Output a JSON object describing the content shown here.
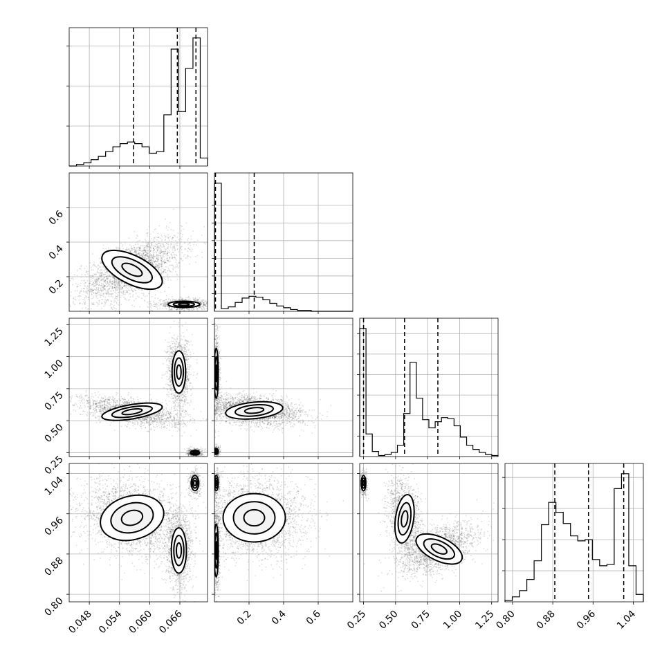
{
  "chart_data": {
    "type": "corner",
    "parameters": 4,
    "grid": true,
    "params": [
      {
        "range": [
          0.044,
          0.0715
        ],
        "ticks": [
          0.048,
          0.054,
          0.06,
          0.066
        ],
        "tick_labels": [
          "0.048",
          "0.054",
          "0.060",
          "0.066"
        ],
        "quantiles": [
          0.0568,
          0.0655,
          0.0692
        ],
        "hist": [
          0,
          1,
          2,
          4,
          6,
          9,
          12,
          14,
          15,
          14,
          12,
          8,
          9,
          32,
          73,
          34,
          61,
          80,
          5
        ]
      },
      {
        "range": [
          0.0,
          0.8
        ],
        "ticks": [
          0.2,
          0.4,
          0.6
        ],
        "tick_labels": [
          "0.2",
          "0.4",
          "0.6"
        ],
        "quantiles": [
          0.006,
          0.23
        ],
        "hist": [
          145,
          3,
          5,
          10,
          15,
          17,
          16,
          13,
          9,
          6,
          4,
          2,
          1,
          1,
          0,
          0,
          0,
          0,
          0,
          0
        ]
      },
      {
        "range": [
          0.22,
          1.3
        ],
        "ticks": [
          0.25,
          0.5,
          0.75,
          1.0,
          1.25
        ],
        "tick_labels": [
          "0.25",
          "0.50",
          "0.75",
          "1.00",
          "1.25"
        ],
        "quantiles": [
          0.25,
          0.57,
          0.83
        ],
        "hist": [
          125,
          22,
          5,
          1,
          2,
          4,
          11,
          42,
          92,
          57,
          36,
          28,
          34,
          38,
          37,
          30,
          19,
          11,
          7,
          4,
          2,
          1
        ]
      },
      {
        "range": [
          0.785,
          1.06
        ],
        "ticks": [
          0.8,
          0.88,
          0.96,
          1.04
        ],
        "tick_labels": [
          "0.80",
          "0.88",
          "0.96",
          "1.04"
        ],
        "quantiles": [
          0.884,
          0.951,
          1.021
        ],
        "hist": [
          1,
          4,
          9,
          18,
          33,
          62,
          80,
          72,
          63,
          53,
          49,
          50,
          34,
          29,
          30,
          91,
          103,
          29,
          6
        ]
      }
    ],
    "pairs": [
      {
        "row": 1,
        "col": 0,
        "modes": [
          {
            "x": 0.0565,
            "y": 0.24,
            "sx": 0.004,
            "sy": 0.075,
            "rho": 0.6,
            "n": 2600
          },
          {
            "x": 0.0668,
            "y": 0.04,
            "sx": 0.0021,
            "sy": 0.012,
            "rho": 0.0,
            "n": 900
          }
        ]
      },
      {
        "row": 2,
        "col": 0,
        "modes": [
          {
            "x": 0.0565,
            "y": 0.57,
            "sx": 0.004,
            "sy": 0.045,
            "rho": -0.55,
            "n": 1800
          },
          {
            "x": 0.0658,
            "y": 0.88,
            "sx": 0.0009,
            "sy": 0.11,
            "rho": 0.0,
            "n": 1200
          },
          {
            "x": 0.069,
            "y": 0.25,
            "sx": 0.0006,
            "sy": 0.012,
            "rho": 0.0,
            "n": 500
          }
        ]
      },
      {
        "row": 2,
        "col": 1,
        "modes": [
          {
            "x": 0.23,
            "y": 0.58,
            "sx": 0.11,
            "sy": 0.045,
            "rho": -0.3,
            "n": 2500
          },
          {
            "x": 0.01,
            "y": 0.87,
            "sx": 0.008,
            "sy": 0.13,
            "rho": 0.0,
            "n": 900
          },
          {
            "x": 0.01,
            "y": 0.26,
            "sx": 0.008,
            "sy": 0.015,
            "rho": 0.0,
            "n": 300
          }
        ]
      },
      {
        "row": 3,
        "col": 0,
        "modes": [
          {
            "x": 0.0565,
            "y": 0.952,
            "sx": 0.0042,
            "sy": 0.03,
            "rho": -0.2,
            "n": 2500
          },
          {
            "x": 0.0658,
            "y": 0.887,
            "sx": 0.001,
            "sy": 0.03,
            "rho": 0.0,
            "n": 1200
          },
          {
            "x": 0.069,
            "y": 1.021,
            "sx": 0.0005,
            "sy": 0.01,
            "rho": 0.0,
            "n": 400
          }
        ]
      },
      {
        "row": 3,
        "col": 1,
        "modes": [
          {
            "x": 0.23,
            "y": 0.952,
            "sx": 0.12,
            "sy": 0.032,
            "rho": 0.0,
            "n": 2500
          },
          {
            "x": 0.01,
            "y": 0.887,
            "sx": 0.008,
            "sy": 0.035,
            "rho": 0.0,
            "n": 800
          },
          {
            "x": 0.01,
            "y": 1.021,
            "sx": 0.008,
            "sy": 0.01,
            "rho": 0.0,
            "n": 400
          }
        ]
      },
      {
        "row": 3,
        "col": 2,
        "modes": [
          {
            "x": 0.57,
            "y": 0.95,
            "sx": 0.05,
            "sy": 0.032,
            "rho": -0.3,
            "n": 1500
          },
          {
            "x": 0.84,
            "y": 0.89,
            "sx": 0.12,
            "sy": 0.02,
            "rho": 0.55,
            "n": 1700
          },
          {
            "x": 0.25,
            "y": 1.021,
            "sx": 0.012,
            "sy": 0.01,
            "rho": 0.0,
            "n": 400
          }
        ]
      }
    ],
    "colors": {
      "line": "#000000",
      "contour_fill": "#ffffff",
      "grid": "#b0b0b0"
    }
  }
}
